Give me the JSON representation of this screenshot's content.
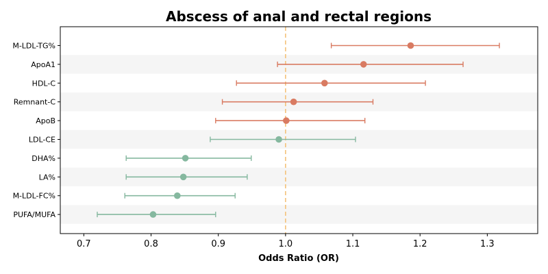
{
  "chart_data": {
    "type": "forest",
    "title": "Abscess of anal and rectal regions",
    "xlabel": "Odds Ratio (OR)",
    "xlim": [
      0.665,
      1.375
    ],
    "xticks": [
      0.7,
      0.8,
      0.9,
      1.0,
      1.1,
      1.2,
      1.3
    ],
    "xtick_labels": [
      "0.7",
      "0.8",
      "0.9",
      "1.0",
      "1.1",
      "1.2",
      "1.3"
    ],
    "reference_line": 1.0,
    "colors": {
      "risk": "#d97b62",
      "protective": "#85b89f",
      "reference": "#f4c27a",
      "band": "#f5f5f5"
    },
    "rows": [
      {
        "label": "M-LDL-TG%",
        "or": 1.186,
        "lower": 1.068,
        "upper": 1.318,
        "group": "risk"
      },
      {
        "label": "ApoA1",
        "or": 1.116,
        "lower": 0.988,
        "upper": 1.264,
        "group": "risk"
      },
      {
        "label": "HDL-C",
        "or": 1.058,
        "lower": 0.927,
        "upper": 1.208,
        "group": "risk"
      },
      {
        "label": "Remnant-C",
        "or": 1.012,
        "lower": 0.906,
        "upper": 1.13,
        "group": "risk"
      },
      {
        "label": "ApoB",
        "or": 1.001,
        "lower": 0.896,
        "upper": 1.118,
        "group": "risk"
      },
      {
        "label": "LDL-CE",
        "or": 0.99,
        "lower": 0.888,
        "upper": 1.104,
        "group": "protective"
      },
      {
        "label": "DHA%",
        "or": 0.851,
        "lower": 0.763,
        "upper": 0.949,
        "group": "protective"
      },
      {
        "label": "LA%",
        "or": 0.848,
        "lower": 0.763,
        "upper": 0.943,
        "group": "protective"
      },
      {
        "label": "M-LDL-FC%",
        "or": 0.839,
        "lower": 0.761,
        "upper": 0.925,
        "group": "protective"
      },
      {
        "label": "PUFA/MUFA",
        "or": 0.803,
        "lower": 0.72,
        "upper": 0.896,
        "group": "protective"
      }
    ]
  }
}
